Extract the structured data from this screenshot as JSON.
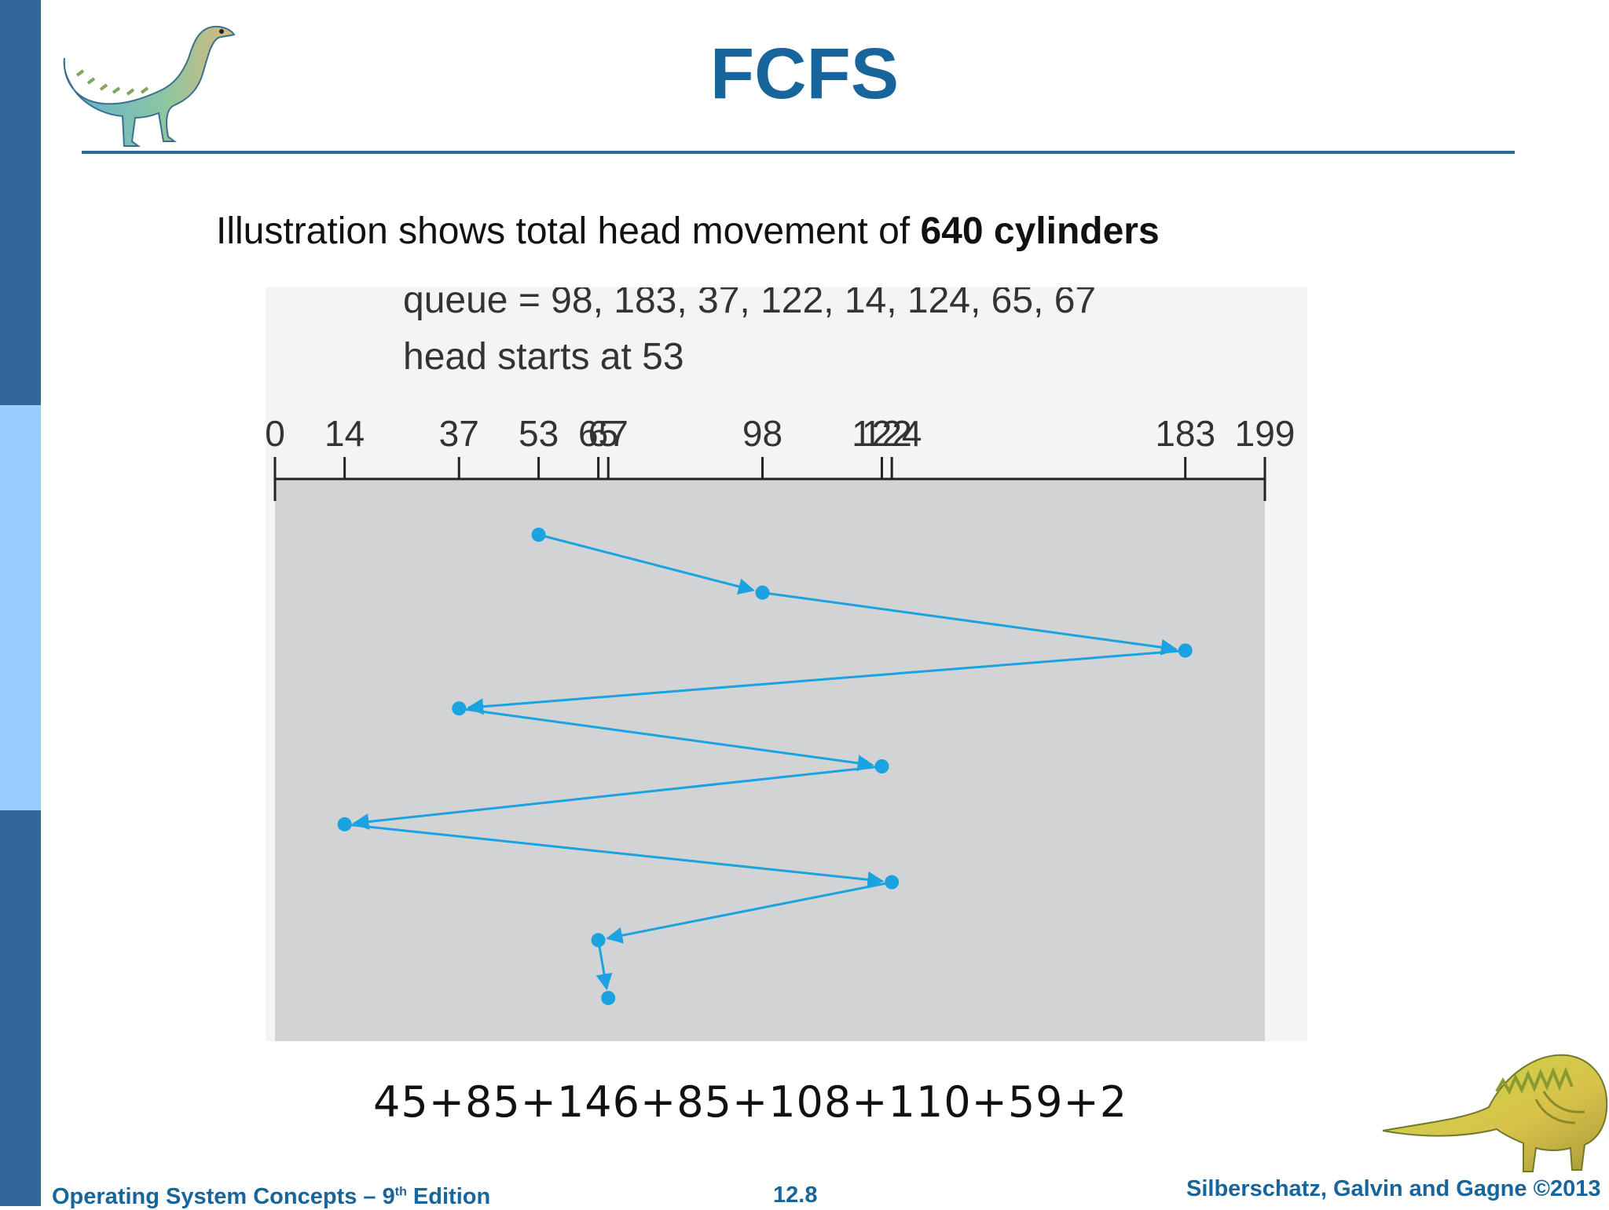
{
  "slide": {
    "title": "FCFS",
    "subtitle_prefix": "Illustration shows total head movement of ",
    "subtitle_bold": "640 cylinders",
    "equation": "45+85+146+85+108+110+59+2"
  },
  "figure": {
    "queue_label": "queue = 98, 183, 37, 122, 14, 124, 65, 67",
    "head_label": "head starts at 53",
    "axis_min": 0,
    "axis_max": 199,
    "ticks": [
      0,
      14,
      37,
      53,
      65,
      67,
      98,
      122,
      124,
      183,
      199
    ],
    "tick_labels": [
      "0",
      "14",
      "37",
      "53",
      "65",
      "67",
      "98",
      "122",
      "124",
      "183",
      "199"
    ],
    "head_sequence": [
      53,
      98,
      183,
      37,
      122,
      14,
      124,
      65,
      67
    ],
    "colors": {
      "path": "#1aa3e0",
      "panel": "#d1d3d4",
      "axis": "#222222"
    }
  },
  "footer": {
    "left_main": "Operating System Concepts – 9",
    "left_sup": "th",
    "left_suffix": " Edition",
    "page_number": "12.8",
    "copyright": "Silberschatz, Galvin and Gagne ©2013"
  },
  "icons": {
    "top_left": "dinosaur-icon",
    "bottom_right": "dinosaur-icon"
  }
}
